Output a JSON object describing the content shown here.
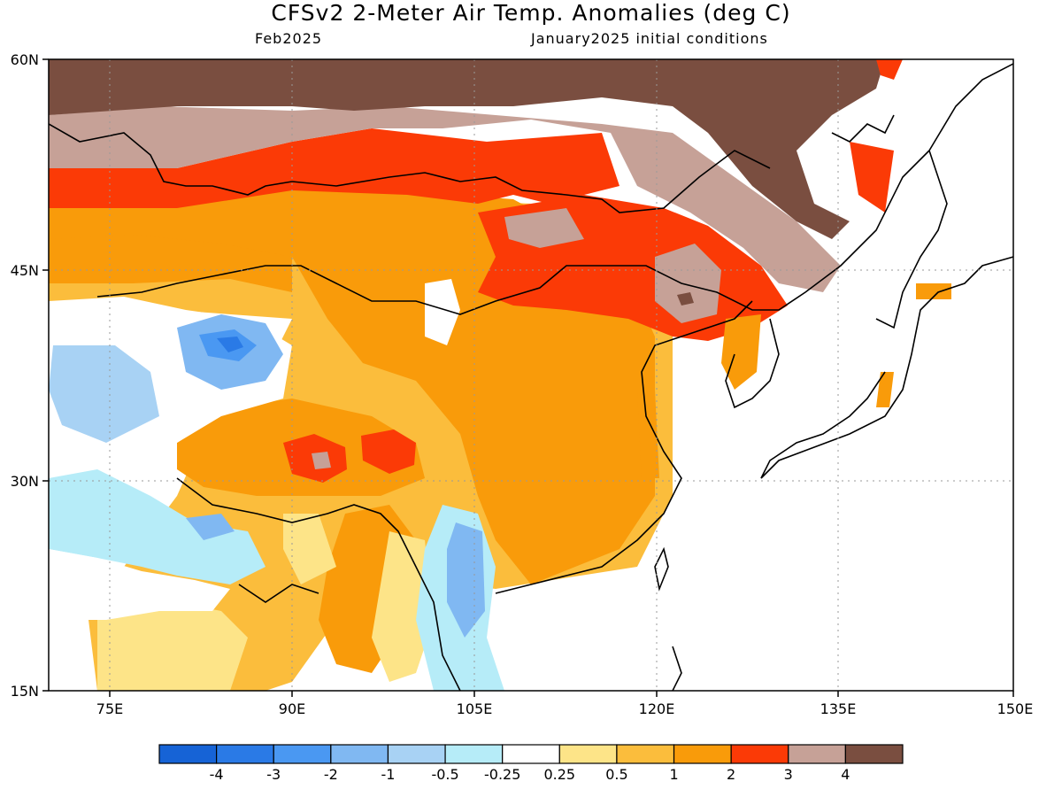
{
  "header": {
    "title": "CFSv2 2-Meter Air Temp. Anomalies (deg C)",
    "subtitle_left": "Feb2025",
    "subtitle_right": "January2025 initial conditions"
  },
  "axes": {
    "lat_labels": [
      "60N",
      "45N",
      "30N",
      "15N"
    ],
    "lon_labels": [
      "75E",
      "90E",
      "105E",
      "120E",
      "135E",
      "150E"
    ]
  },
  "legend": {
    "ticks": [
      "-4",
      "-3",
      "-2",
      "-1",
      "-0.5",
      "-0.25",
      "0.25",
      "0.5",
      "1",
      "2",
      "3",
      "4"
    ],
    "colors": [
      "#1663d6",
      "#2a7ae6",
      "#4a98f2",
      "#80b8f2",
      "#a8d2f4",
      "#b6ecf8",
      "#ffffff",
      "#fde488",
      "#fbbd3c",
      "#f99b0a",
      "#fb3a06",
      "#c6a197",
      "#7a4e40"
    ]
  }
}
